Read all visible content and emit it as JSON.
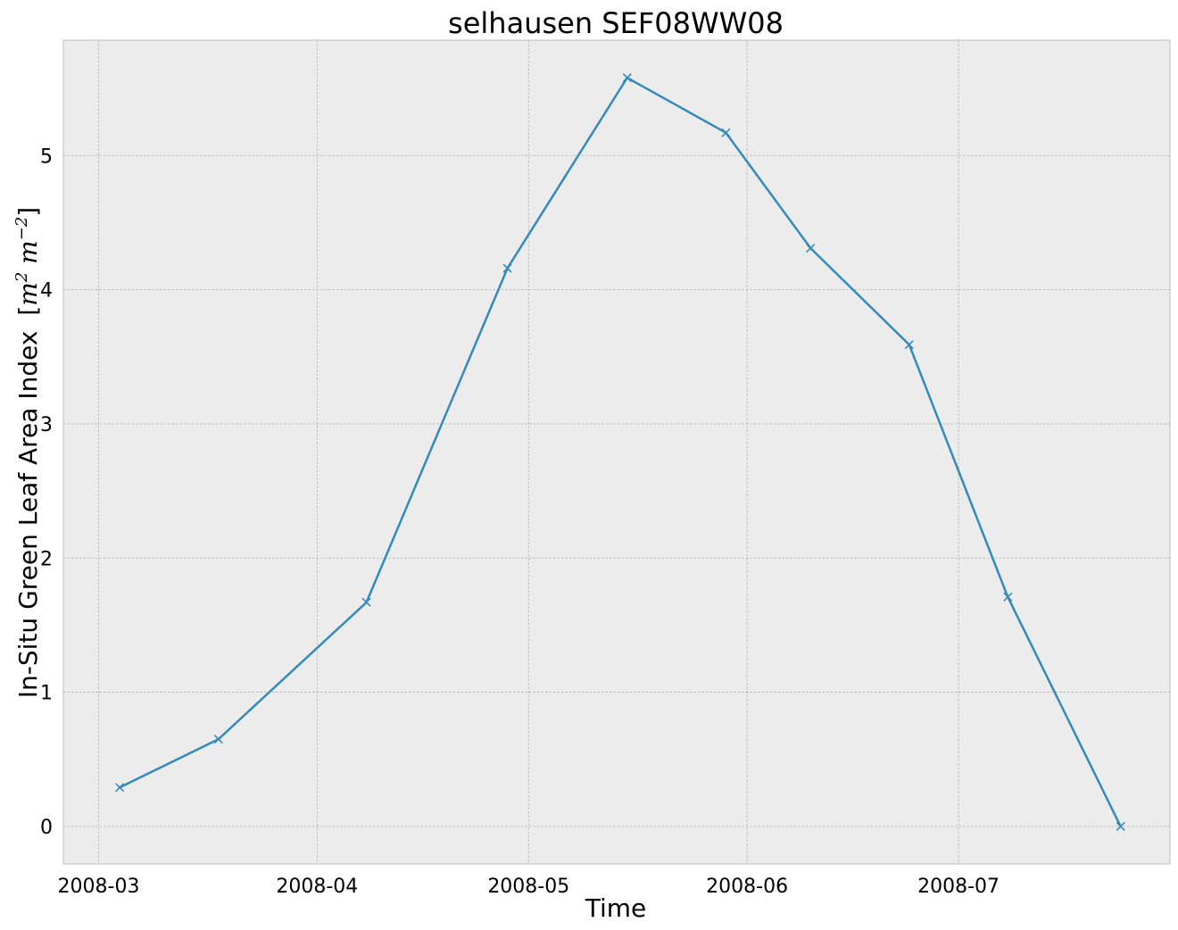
{
  "chart_data": {
    "type": "line",
    "title": "selhausen SEF08WW08",
    "xlabel": "Time",
    "ylabel": {
      "text": "In-Situ Green Leaf Area Index",
      "unit_text": "[m2 m−2]",
      "unit_parts": [
        "[",
        "m",
        "2",
        " m",
        "−2",
        "]"
      ]
    },
    "x": [
      "2008-03-04",
      "2008-03-18",
      "2008-04-08",
      "2008-04-28",
      "2008-05-15",
      "2008-05-29",
      "2008-06-10",
      "2008-06-24",
      "2008-07-08",
      "2008-07-24"
    ],
    "series": [
      {
        "values": [
          0.29,
          0.65,
          1.67,
          4.16,
          5.58,
          5.17,
          4.31,
          3.59,
          1.71,
          0.0
        ]
      }
    ],
    "marker": "x",
    "color": "#348abd",
    "xlim": [
      "2008-02-25",
      "2008-07-31"
    ],
    "ylim": [
      -0.28,
      5.86
    ],
    "x_ticks": [
      "2008-03",
      "2008-04",
      "2008-05",
      "2008-06",
      "2008-07"
    ],
    "y_ticks": [
      0,
      1,
      2,
      3,
      4,
      5
    ],
    "grid": true,
    "background": "#ececec"
  }
}
